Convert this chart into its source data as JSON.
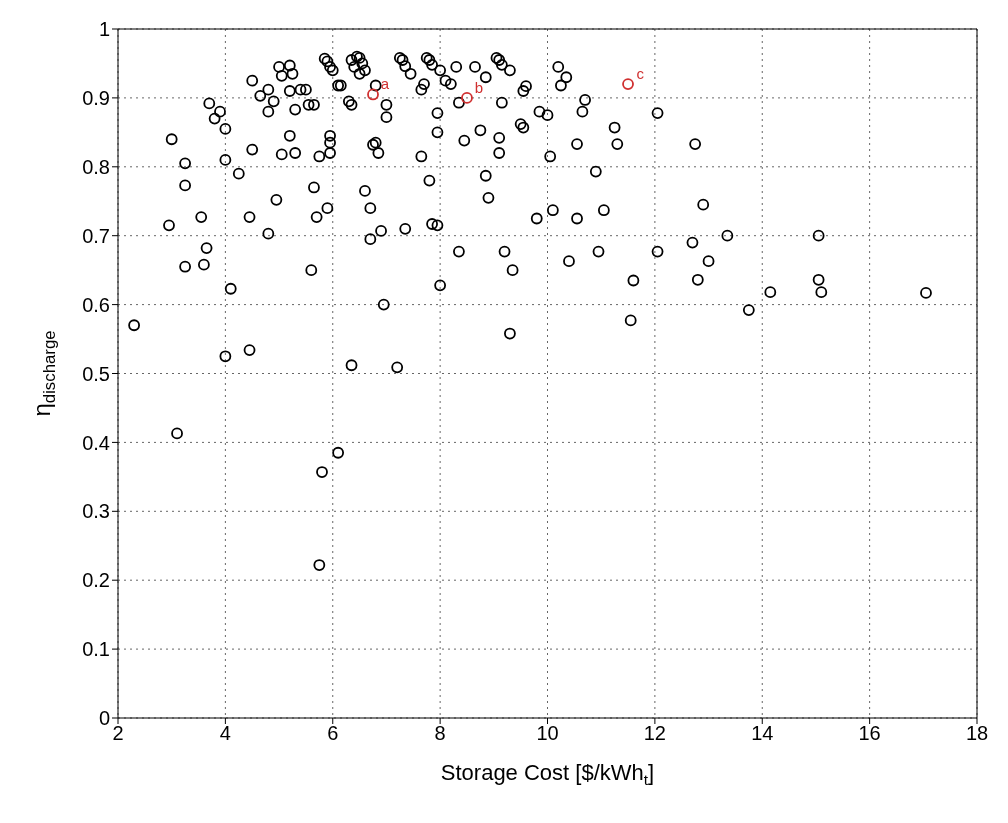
{
  "chart_data": {
    "type": "scatter",
    "xlabel": "Storage Cost [$/kWh$_{t}$]",
    "ylabel": "η$_{discharge}$",
    "xlim": [
      2,
      18
    ],
    "xticks": [
      2,
      4,
      6,
      8,
      10,
      12,
      14,
      16,
      18
    ],
    "ylim": [
      0,
      1
    ],
    "yticks": [
      0,
      0.1,
      0.2,
      0.3,
      0.4,
      0.5,
      0.6,
      0.7,
      0.8,
      0.9,
      1
    ],
    "grid": true,
    "legend": false,
    "marker": "circle",
    "series": [
      {
        "color": "#000000",
        "x": [
          2.3,
          3.0,
          2.95,
          3.25,
          3.25,
          3.25,
          3.1,
          3.55,
          3.6,
          3.65,
          3.7,
          3.8,
          3.9,
          4.0,
          4.0,
          4.1,
          4.0,
          4.25,
          4.45,
          4.5,
          4.5,
          4.45,
          4.65,
          4.8,
          4.8,
          4.8,
          4.9,
          4.95,
          5.0,
          5.05,
          5.05,
          5.2,
          5.2,
          5.2,
          5.25,
          5.3,
          5.3,
          5.4,
          5.5,
          5.55,
          5.65,
          5.65,
          5.7,
          5.6,
          5.75,
          5.85,
          5.9,
          5.95,
          5.9,
          5.95,
          5.95,
          5.95,
          6.0,
          6.1,
          6.15,
          5.8,
          6.1,
          5.75,
          6.3,
          6.35,
          6.35,
          6.4,
          6.45,
          6.5,
          6.55,
          6.5,
          6.6,
          6.35,
          6.6,
          6.7,
          6.7,
          6.75,
          6.8,
          6.85,
          6.8,
          6.9,
          6.95,
          7.0,
          7.0,
          7.2,
          7.25,
          7.3,
          7.35,
          7.35,
          7.45,
          7.65,
          7.7,
          7.65,
          7.75,
          7.8,
          7.85,
          7.8,
          7.85,
          7.95,
          7.95,
          7.95,
          8.0,
          8.0,
          8.1,
          8.2,
          8.3,
          8.35,
          8.35,
          8.45,
          8.65,
          8.75,
          8.85,
          8.85,
          8.9,
          9.05,
          9.1,
          9.15,
          9.1,
          9.1,
          9.15,
          9.2,
          9.3,
          9.3,
          9.35,
          9.5,
          9.55,
          9.55,
          9.6,
          9.8,
          9.85,
          10.0,
          10.05,
          10.1,
          10.2,
          10.25,
          10.35,
          10.4,
          10.55,
          10.55,
          10.65,
          10.7,
          10.9,
          10.95,
          11.05,
          11.25,
          11.3,
          11.55,
          11.6,
          12.05,
          12.05,
          12.75,
          12.7,
          12.8,
          12.9,
          13.0,
          13.35,
          13.75,
          14.15,
          15.05,
          15.05,
          15.1,
          17.05
        ],
        "values": [
          0.57,
          0.84,
          0.715,
          0.805,
          0.773,
          0.655,
          0.413,
          0.727,
          0.658,
          0.682,
          0.892,
          0.87,
          0.88,
          0.855,
          0.81,
          0.623,
          0.525,
          0.79,
          0.727,
          0.825,
          0.925,
          0.534,
          0.903,
          0.88,
          0.912,
          0.703,
          0.895,
          0.752,
          0.945,
          0.932,
          0.818,
          0.947,
          0.91,
          0.845,
          0.935,
          0.883,
          0.82,
          0.912,
          0.912,
          0.89,
          0.89,
          0.77,
          0.727,
          0.65,
          0.815,
          0.957,
          0.953,
          0.945,
          0.74,
          0.82,
          0.835,
          0.845,
          0.94,
          0.918,
          0.918,
          0.357,
          0.385,
          0.222,
          0.895,
          0.89,
          0.955,
          0.945,
          0.96,
          0.958,
          0.95,
          0.935,
          0.94,
          0.512,
          0.765,
          0.74,
          0.695,
          0.832,
          0.835,
          0.82,
          0.918,
          0.707,
          0.6,
          0.872,
          0.89,
          0.509,
          0.958,
          0.955,
          0.946,
          0.71,
          0.935,
          0.912,
          0.92,
          0.815,
          0.958,
          0.955,
          0.948,
          0.78,
          0.717,
          0.715,
          0.85,
          0.878,
          0.94,
          0.628,
          0.925,
          0.92,
          0.945,
          0.893,
          0.677,
          0.838,
          0.945,
          0.853,
          0.787,
          0.93,
          0.755,
          0.958,
          0.955,
          0.948,
          0.842,
          0.82,
          0.893,
          0.677,
          0.94,
          0.558,
          0.65,
          0.862,
          0.857,
          0.91,
          0.917,
          0.725,
          0.88,
          0.875,
          0.815,
          0.737,
          0.945,
          0.918,
          0.93,
          0.663,
          0.725,
          0.833,
          0.88,
          0.897,
          0.793,
          0.677,
          0.737,
          0.857,
          0.833,
          0.577,
          0.635,
          0.878,
          0.677,
          0.833,
          0.69,
          0.636,
          0.745,
          0.663,
          0.7,
          0.592,
          0.618,
          0.7,
          0.636,
          0.618,
          0.617
        ]
      },
      {
        "color": "#d03030",
        "x": [
          6.75,
          8.5,
          11.5
        ],
        "values": [
          0.905,
          0.9,
          0.92
        ]
      }
    ],
    "annotations": [
      {
        "text": "a",
        "x": 6.75,
        "y": 0.905
      },
      {
        "text": "b",
        "x": 8.5,
        "y": 0.9
      },
      {
        "text": "c",
        "x": 11.5,
        "y": 0.92
      }
    ]
  }
}
